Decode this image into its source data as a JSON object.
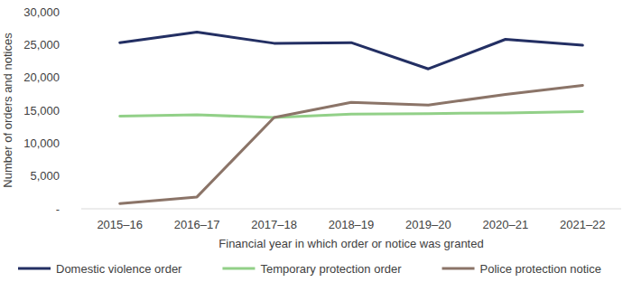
{
  "chart_data": {
    "type": "line",
    "x_label": "Financial year in which order or notice was granted",
    "y_label": "Number of orders and notices",
    "categories": [
      "2015–16",
      "2016–17",
      "2017–18",
      "2018–19",
      "2019–20",
      "2020–21",
      "2021–22"
    ],
    "series": [
      {
        "name": "Domestic violence order",
        "color": "#232f63",
        "values": [
          25300,
          26900,
          25200,
          25300,
          21300,
          25800,
          24900
        ]
      },
      {
        "name": "Temporary protection order",
        "color": "#92d088",
        "values": [
          14100,
          14300,
          13900,
          14400,
          14500,
          14600,
          14800
        ]
      },
      {
        "name": "Police protection notice",
        "color": "#8b7468",
        "values": [
          800,
          1800,
          13900,
          16200,
          15800,
          17400,
          18800
        ]
      }
    ],
    "ylim": [
      0,
      30000
    ],
    "yticks": [
      {
        "value": 0,
        "label": "-"
      },
      {
        "value": 5000,
        "label": "5,000"
      },
      {
        "value": 10000,
        "label": "10,000"
      },
      {
        "value": 15000,
        "label": "15,000"
      },
      {
        "value": 20000,
        "label": "20,000"
      },
      {
        "value": 25000,
        "label": "25,000"
      },
      {
        "value": 30000,
        "label": "30,000"
      }
    ],
    "grid": false,
    "legend": "bottom"
  }
}
